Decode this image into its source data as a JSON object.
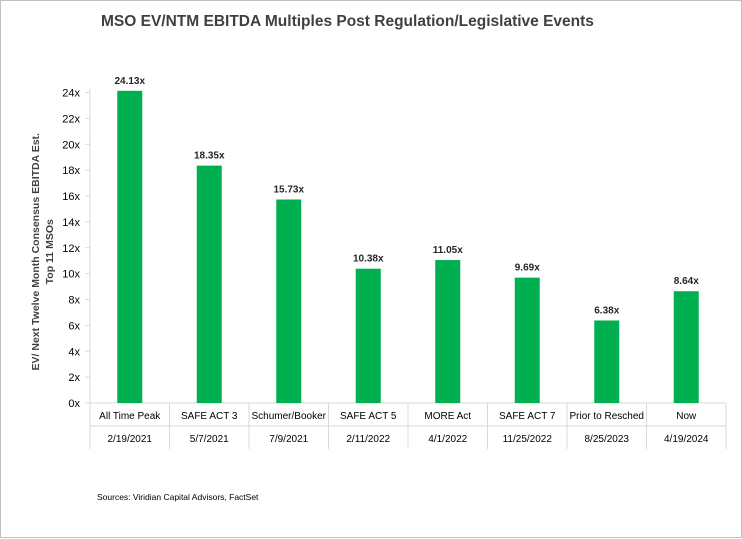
{
  "chart_data": {
    "type": "bar",
    "title": "MSO EV/NTM EBITDA Multiples Post Regulation/Legislative Events",
    "ylabel_lines": [
      "EV/ Next Twelve Month Consensus EBITDA Est.",
      "Top 11 MSOs"
    ],
    "xlabel": "",
    "categories": [
      "All Time Peak",
      "SAFE ACT 3",
      "Schumer/Booker",
      "SAFE ACT 5",
      "MORE Act",
      "SAFE ACT 7",
      "Prior to Resched",
      "Now"
    ],
    "dates": [
      "2/19/2021",
      "5/7/2021",
      "7/9/2021",
      "2/11/2022",
      "4/1/2022",
      "11/25/2022",
      "8/25/2023",
      "4/19/2024"
    ],
    "values": [
      24.13,
      18.35,
      15.73,
      10.38,
      11.05,
      9.69,
      6.38,
      8.64
    ],
    "value_labels": [
      "24.13x",
      "18.35x",
      "15.73x",
      "10.38x",
      "11.05x",
      "9.69x",
      "6.38x",
      "8.64x"
    ],
    "ylim": [
      0,
      24
    ],
    "yticks": [
      0,
      2,
      4,
      6,
      8,
      10,
      12,
      14,
      16,
      18,
      20,
      22,
      24
    ],
    "ytick_labels": [
      "0x",
      "2x",
      "4x",
      "6x",
      "8x",
      "10x",
      "12x",
      "14x",
      "16x",
      "18x",
      "20x",
      "22x",
      "24x"
    ],
    "grid": false,
    "bar_color": "#00b050"
  },
  "source_note": "Sources: Viridian Capital Advisors, FactSet"
}
